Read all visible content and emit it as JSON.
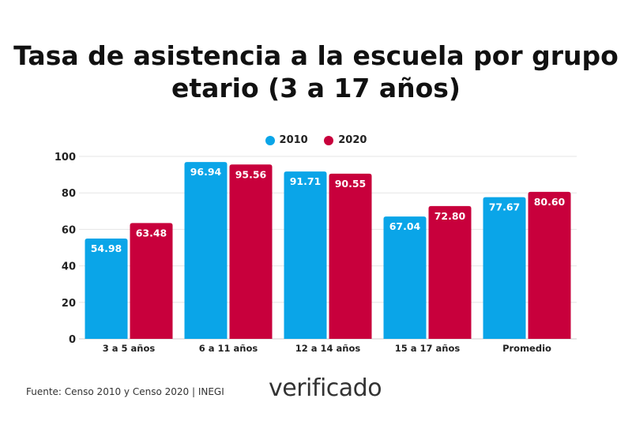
{
  "chart_data": {
    "type": "bar",
    "title": "Tasa de asistencia a la escuela por grupo etario (3 a 17 años)",
    "categories": [
      "3 a 5 años",
      "6 a 11 años",
      "12 a 14 años",
      "15 a 17 años",
      "Promedio"
    ],
    "series": [
      {
        "name": "2010",
        "color": "#0aa5e8",
        "values": [
          54.98,
          96.94,
          91.71,
          67.04,
          77.67
        ]
      },
      {
        "name": "2020",
        "color": "#c8003c",
        "values": [
          63.48,
          95.56,
          90.55,
          72.8,
          80.6
        ]
      }
    ],
    "ylim": [
      0,
      100
    ],
    "yticks": [
      0,
      20,
      40,
      60,
      80,
      100
    ],
    "grid": true,
    "legend": "top-center"
  },
  "footer": {
    "source": "Fuente: Censo 2010 y Censo 2020 | INEGI",
    "logo": "verificado"
  }
}
